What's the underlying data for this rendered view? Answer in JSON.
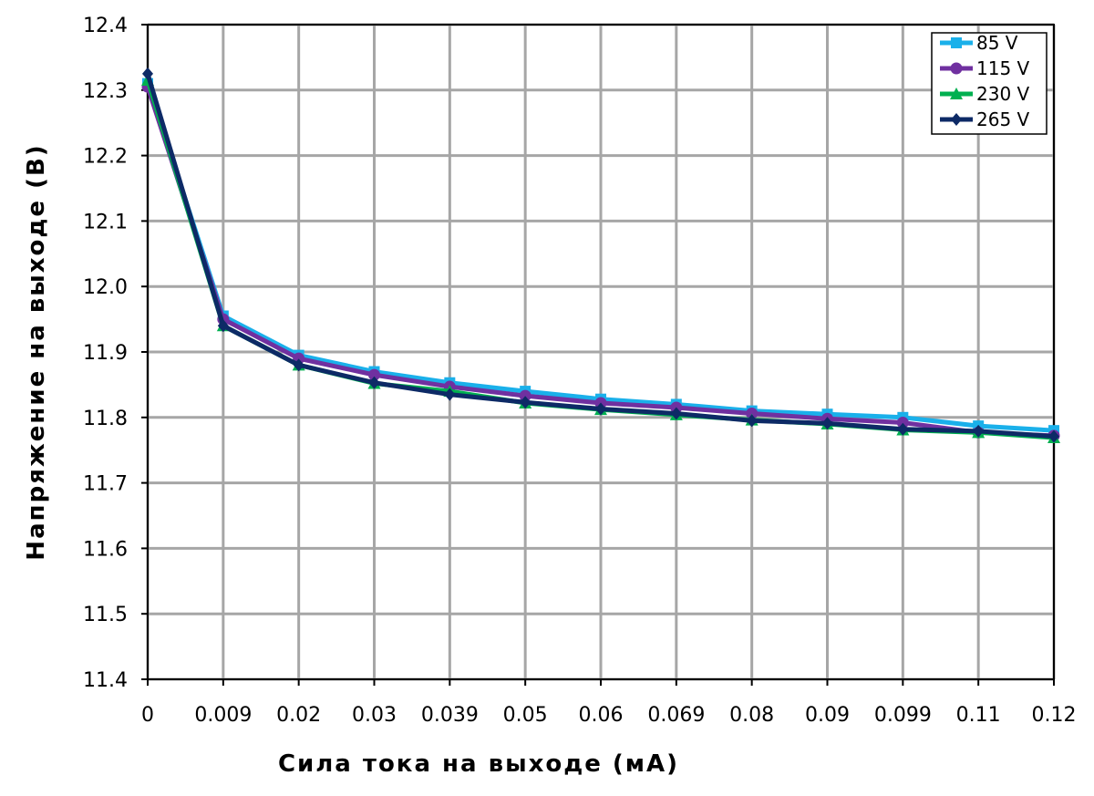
{
  "chart_data": {
    "type": "line",
    "title": "",
    "xlabel": "Сила тока на выходе (мА)",
    "ylabel": "Напряжение на выходе (В)",
    "categories": [
      "0",
      "0.009",
      "0.02",
      "0.03",
      "0.039",
      "0.05",
      "0.06",
      "0.069",
      "0.08",
      "0.09",
      "0.099",
      "0.11",
      "0.12"
    ],
    "ylim": [
      11.4,
      12.4
    ],
    "yticks": [
      "11.4",
      "11.5",
      "11.6",
      "11.7",
      "11.8",
      "11.9",
      "12.0",
      "12.1",
      "12.2",
      "12.3",
      "12.4"
    ],
    "grid": true,
    "legend_position": "top-right",
    "series": [
      {
        "name": "85 V",
        "color": "#1ab0ea",
        "marker": "square",
        "values": [
          12.31,
          11.955,
          11.895,
          11.87,
          11.853,
          11.84,
          11.828,
          11.82,
          11.81,
          11.805,
          11.8,
          11.787,
          11.78
        ]
      },
      {
        "name": "115 V",
        "color": "#7030a0",
        "marker": "circle",
        "values": [
          12.305,
          11.95,
          11.89,
          11.865,
          11.847,
          11.833,
          11.822,
          11.815,
          11.806,
          11.798,
          11.792,
          11.777,
          11.772
        ]
      },
      {
        "name": "230 V",
        "color": "#00b050",
        "marker": "triangle",
        "values": [
          12.315,
          11.94,
          11.88,
          11.852,
          11.84,
          11.822,
          11.812,
          11.804,
          11.796,
          11.79,
          11.781,
          11.777,
          11.769
        ]
      },
      {
        "name": "265 V",
        "color": "#0d2a66",
        "marker": "diamond",
        "values": [
          12.325,
          11.94,
          11.88,
          11.853,
          11.835,
          11.823,
          11.813,
          11.806,
          11.795,
          11.791,
          11.782,
          11.779,
          11.771
        ]
      }
    ]
  }
}
